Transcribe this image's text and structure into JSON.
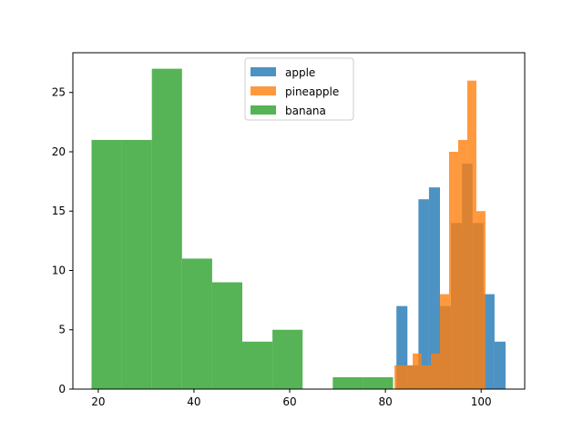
{
  "chart_data": {
    "type": "bar",
    "title": "",
    "xlabel": "",
    "ylabel": "",
    "xlim": [
      14.7,
      109.1
    ],
    "ylim": [
      0,
      28.35
    ],
    "x_ticks": [
      20,
      40,
      60,
      80,
      100
    ],
    "y_ticks": [
      0,
      5,
      10,
      15,
      20,
      25
    ],
    "grid": false,
    "legend_position": "top-center",
    "series": [
      {
        "name": "apple",
        "color": "#1f77b4",
        "bins": [
          {
            "x0": 82.3,
            "x1": 84.6,
            "value": 7
          },
          {
            "x0": 84.6,
            "x1": 86.9,
            "value": 2
          },
          {
            "x0": 86.9,
            "x1": 89.1,
            "value": 16
          },
          {
            "x0": 89.1,
            "x1": 91.4,
            "value": 17
          },
          {
            "x0": 91.4,
            "x1": 93.7,
            "value": 7
          },
          {
            "x0": 93.7,
            "x1": 96.0,
            "value": 14
          },
          {
            "x0": 96.0,
            "x1": 98.2,
            "value": 19
          },
          {
            "x0": 98.2,
            "x1": 100.5,
            "value": 14
          },
          {
            "x0": 100.5,
            "x1": 102.8,
            "value": 8
          },
          {
            "x0": 102.8,
            "x1": 105.1,
            "value": 4
          }
        ]
      },
      {
        "name": "pineapple",
        "color": "#ff7f0e",
        "bins": [
          {
            "x0": 81.9,
            "x1": 83.8,
            "value": 2
          },
          {
            "x0": 83.8,
            "x1": 85.7,
            "value": 2
          },
          {
            "x0": 85.7,
            "x1": 87.6,
            "value": 3
          },
          {
            "x0": 87.6,
            "x1": 89.5,
            "value": 2
          },
          {
            "x0": 89.5,
            "x1": 91.4,
            "value": 3
          },
          {
            "x0": 91.4,
            "x1": 93.3,
            "value": 8
          },
          {
            "x0": 93.3,
            "x1": 95.2,
            "value": 20
          },
          {
            "x0": 95.2,
            "x1": 97.1,
            "value": 21
          },
          {
            "x0": 97.1,
            "x1": 99.0,
            "value": 26
          },
          {
            "x0": 99.0,
            "x1": 100.9,
            "value": 15
          }
        ]
      },
      {
        "name": "banana",
        "color": "#2ca02c",
        "bins": [
          {
            "x0": 18.6,
            "x1": 24.9,
            "value": 21
          },
          {
            "x0": 24.9,
            "x1": 31.2,
            "value": 21
          },
          {
            "x0": 31.2,
            "x1": 37.5,
            "value": 27
          },
          {
            "x0": 37.5,
            "x1": 43.8,
            "value": 11
          },
          {
            "x0": 43.8,
            "x1": 50.1,
            "value": 9
          },
          {
            "x0": 50.1,
            "x1": 56.4,
            "value": 4
          },
          {
            "x0": 56.4,
            "x1": 62.7,
            "value": 5
          },
          {
            "x0": 62.7,
            "x1": 69.0,
            "value": 0
          },
          {
            "x0": 69.0,
            "x1": 75.3,
            "value": 1
          },
          {
            "x0": 75.3,
            "x1": 81.6,
            "value": 1
          }
        ]
      }
    ]
  }
}
